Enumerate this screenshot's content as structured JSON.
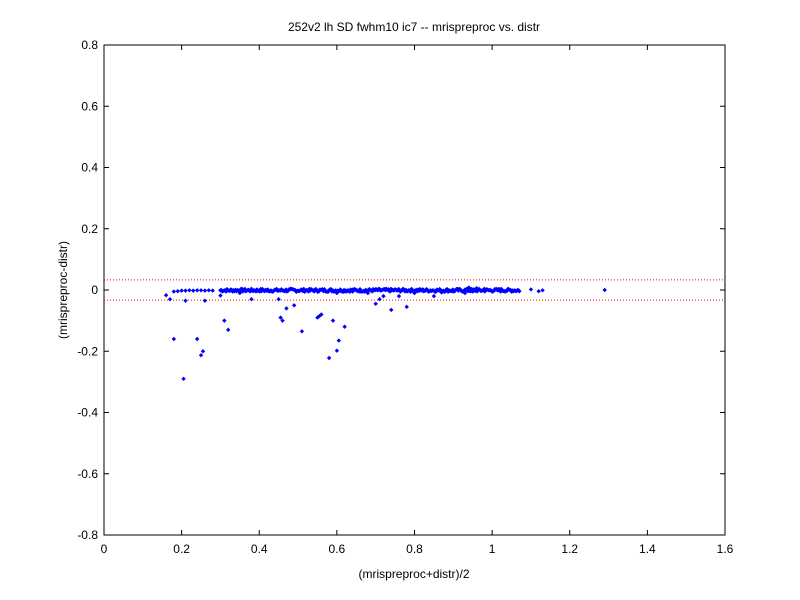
{
  "chart_data": {
    "type": "scatter",
    "title": "252v2 lh SD fwhm10 ic7 -- mrispreproc vs. distr",
    "xlabel": "(mrispreproc+distr)/2",
    "ylabel": "(mrispreproc-distr)",
    "xlim": [
      0,
      1.6
    ],
    "ylim": [
      -0.8,
      0.8
    ],
    "xticks": [
      0,
      0.2,
      0.4,
      0.6,
      0.8,
      1,
      1.2,
      1.4,
      1.6
    ],
    "yticks": [
      -0.8,
      -0.6,
      -0.4,
      -0.2,
      0,
      0.2,
      0.4,
      0.6,
      0.8
    ],
    "xtick_labels": [
      "0",
      "0.2",
      "0.4",
      "0.6",
      "0.8",
      "1",
      "1.2",
      "1.4",
      "1.6"
    ],
    "ytick_labels": [
      "-0.8",
      "-0.6",
      "-0.4",
      "-0.2",
      "0",
      "0.2",
      "0.4",
      "0.6",
      "0.8"
    ],
    "grid": false,
    "marker_color": "#0000ff",
    "reference_lines": [
      {
        "y": 0.033,
        "color": "#ff0000",
        "style": "dotted"
      },
      {
        "y": -0.033,
        "color": "#ff0000",
        "style": "dotted"
      }
    ],
    "dense_band": {
      "x_range": [
        0.3,
        1.07
      ],
      "y_range": [
        -0.006,
        0.004
      ],
      "count": 320
    },
    "points": [
      [
        0.16,
        -0.017
      ],
      [
        0.17,
        -0.03
      ],
      [
        0.18,
        -0.005
      ],
      [
        0.18,
        -0.16
      ],
      [
        0.19,
        -0.004
      ],
      [
        0.2,
        -0.002
      ],
      [
        0.205,
        -0.29
      ],
      [
        0.21,
        -0.002
      ],
      [
        0.21,
        -0.035
      ],
      [
        0.22,
        -0.001
      ],
      [
        0.23,
        -0.002
      ],
      [
        0.24,
        -0.001
      ],
      [
        0.24,
        -0.16
      ],
      [
        0.25,
        -0.001
      ],
      [
        0.25,
        -0.213
      ],
      [
        0.255,
        -0.2
      ],
      [
        0.26,
        -0.035
      ],
      [
        0.26,
        -0.002
      ],
      [
        0.27,
        -0.001
      ],
      [
        0.28,
        -0.002
      ],
      [
        0.3,
        -0.001
      ],
      [
        0.3,
        -0.018
      ],
      [
        0.31,
        -0.1
      ],
      [
        0.32,
        -0.13
      ],
      [
        0.33,
        -0.002
      ],
      [
        0.35,
        -0.01
      ],
      [
        0.38,
        -0.03
      ],
      [
        0.42,
        -0.003
      ],
      [
        0.45,
        -0.03
      ],
      [
        0.455,
        -0.09
      ],
      [
        0.46,
        -0.1
      ],
      [
        0.47,
        -0.06
      ],
      [
        0.49,
        -0.05
      ],
      [
        0.51,
        -0.135
      ],
      [
        0.55,
        -0.09
      ],
      [
        0.555,
        -0.085
      ],
      [
        0.56,
        -0.08
      ],
      [
        0.58,
        -0.222
      ],
      [
        0.59,
        -0.1
      ],
      [
        0.6,
        -0.198
      ],
      [
        0.605,
        -0.165
      ],
      [
        0.62,
        -0.12
      ],
      [
        0.6,
        -0.01
      ],
      [
        0.64,
        -0.005
      ],
      [
        0.68,
        -0.01
      ],
      [
        0.7,
        -0.045
      ],
      [
        0.71,
        -0.03
      ],
      [
        0.72,
        -0.02
      ],
      [
        0.74,
        -0.065
      ],
      [
        0.76,
        -0.02
      ],
      [
        0.78,
        -0.055
      ],
      [
        0.8,
        -0.01
      ],
      [
        0.85,
        -0.02
      ],
      [
        0.87,
        -0.008
      ],
      [
        0.9,
        -0.005
      ],
      [
        0.93,
        -0.01
      ],
      [
        0.95,
        -0.005
      ],
      [
        0.97,
        -0.002
      ],
      [
        1.0,
        -0.004
      ],
      [
        1.05,
        -0.005
      ],
      [
        1.07,
        -0.004
      ],
      [
        1.1,
        0.002
      ],
      [
        1.12,
        -0.004
      ],
      [
        1.13,
        -0.001
      ],
      [
        1.29,
        0.0
      ],
      [
        0.94,
        0.008
      ],
      [
        0.96,
        0.006
      ],
      [
        0.98,
        0.004
      ],
      [
        1.02,
        0.003
      ]
    ]
  }
}
